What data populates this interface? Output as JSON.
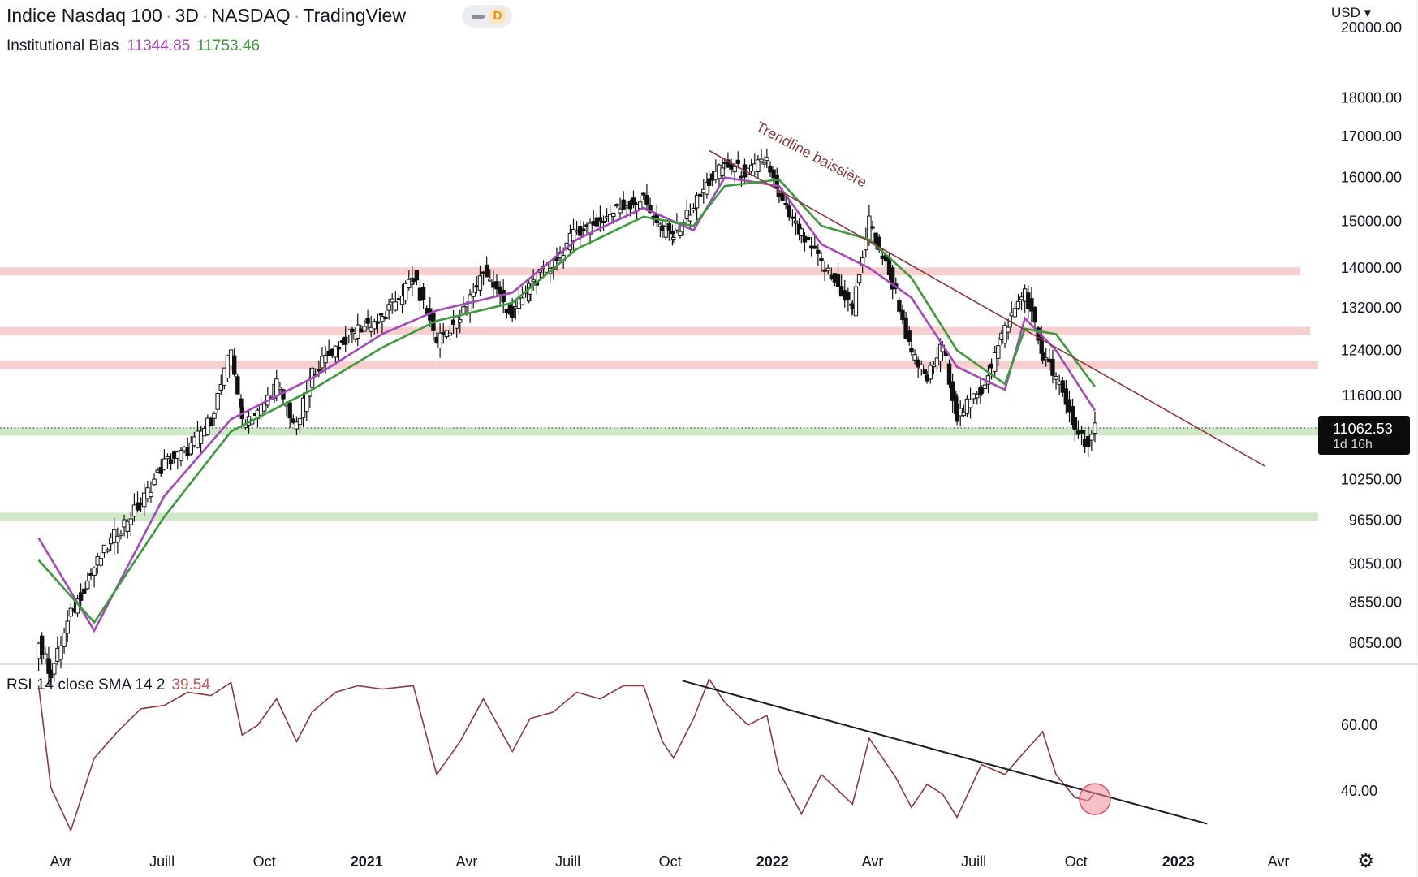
{
  "header": {
    "symbol": "Indice Nasdaq 100",
    "interval": "3D",
    "exchange": "NASDAQ",
    "source": "TradingView",
    "interval_badge": "D",
    "currency": "USD ▾"
  },
  "indicator": {
    "name": "Institutional Bias",
    "fast_value": "11344.85",
    "slow_value": "11753.46",
    "fast_color": "#a349b8",
    "slow_color": "#3d9a3d"
  },
  "rsi_legend": {
    "label": "RSI 14 close SMA 14 2",
    "value": "39.54",
    "color": "#c2575a"
  },
  "last_price": {
    "value": "11062.53",
    "countdown": "1d 16h"
  },
  "icons": {
    "settings": "gear-icon"
  },
  "colors": {
    "resistance_zone": "#f7cfcf",
    "support_zone": "#cfe9c8",
    "trendline": "#8b3a3e",
    "rsi_trendline": "#1e1e1e",
    "rsi_line": "#8b3a3e",
    "candle": "#111111",
    "highlight_circle": "#f08a99"
  },
  "chart_data": [
    {
      "type": "candlestick",
      "title": "",
      "xlabel": "",
      "ylabel": "",
      "x_ticks": [
        "Avr",
        "Juill",
        "Oct",
        "2021",
        "Avr",
        "Juill",
        "Oct",
        "2022",
        "Avr",
        "Juill",
        "Oct",
        "2023",
        "Avr"
      ],
      "x_tick_dates": [
        "2020-04",
        "2020-07",
        "2020-10",
        "2021-01",
        "2021-04",
        "2021-07",
        "2021-10",
        "2022-01",
        "2022-04",
        "2022-07",
        "2022-10",
        "2023-01",
        "2023-04"
      ],
      "y_ticks": [
        "8050.00",
        "8550.00",
        "9050.00",
        "9650.00",
        "10250.00",
        "11600.00",
        "12400.00",
        "13200.00",
        "14000.00",
        "15000.00",
        "16000.00",
        "17000.00",
        "18000.00",
        "20000.00"
      ],
      "y_scale": "log",
      "series": [
        {
          "name": "",
          "note": "3-day closes, approximate",
          "x": [
            "2020-03-12",
            "2020-03-23",
            "2020-04-10",
            "2020-05-01",
            "2020-05-22",
            "2020-06-12",
            "2020-07-03",
            "2020-07-24",
            "2020-08-14",
            "2020-09-01",
            "2020-09-11",
            "2020-09-25",
            "2020-10-12",
            "2020-10-30",
            "2020-11-13",
            "2020-12-04",
            "2020-12-24",
            "2021-01-15",
            "2021-02-12",
            "2021-03-05",
            "2021-03-26",
            "2021-04-16",
            "2021-05-12",
            "2021-05-28",
            "2021-06-18",
            "2021-07-09",
            "2021-07-30",
            "2021-08-20",
            "2021-09-07",
            "2021-09-24",
            "2021-10-04",
            "2021-10-22",
            "2021-11-05",
            "2021-11-19",
            "2021-12-10",
            "2021-12-27",
            "2022-01-07",
            "2022-01-27",
            "2022-02-14",
            "2022-03-14",
            "2022-03-29",
            "2022-04-22",
            "2022-05-06",
            "2022-05-20",
            "2022-06-03",
            "2022-06-16",
            "2022-07-08",
            "2022-07-29",
            "2022-08-16",
            "2022-09-01",
            "2022-09-13",
            "2022-09-30",
            "2022-10-12",
            "2022-10-18"
          ],
          "close": [
            8050,
            7700,
            8400,
            9000,
            9500,
            9900,
            10500,
            10700,
            11200,
            12400,
            11200,
            11300,
            11800,
            11050,
            12000,
            12450,
            12800,
            13000,
            13800,
            12600,
            13000,
            13950,
            13050,
            13650,
            14100,
            14800,
            15000,
            15350,
            15500,
            14800,
            14700,
            15350,
            15900,
            16300,
            16100,
            16450,
            15500,
            14700,
            14100,
            13200,
            15000,
            13500,
            12300,
            11900,
            12500,
            11250,
            11700,
            12800,
            13550,
            12300,
            11900,
            11050,
            10800,
            11062.53
          ]
        },
        {
          "name": "Institutional Bias",
          "note": "fast moving average (purple), approximate",
          "x": [
            "2020-03-12",
            "2020-05-01",
            "2020-07-03",
            "2020-09-01",
            "2020-11-13",
            "2021-01-15",
            "2021-03-05",
            "2021-05-12",
            "2021-07-09",
            "2021-09-07",
            "2021-10-22",
            "2021-11-19",
            "2022-01-07",
            "2022-02-14",
            "2022-03-29",
            "2022-05-06",
            "2022-06-16",
            "2022-07-29",
            "2022-08-16",
            "2022-09-13",
            "2022-10-18"
          ],
          "values": [
            9400,
            8200,
            10000,
            11200,
            11900,
            12700,
            13150,
            13500,
            14600,
            15300,
            14800,
            16000,
            15800,
            14500,
            14000,
            13400,
            12100,
            11700,
            13000,
            12400,
            11344.85
          ]
        },
        {
          "name": "Institutional Bias",
          "note": "slow moving average (green), approximate",
          "x": [
            "2020-03-12",
            "2020-05-01",
            "2020-07-03",
            "2020-09-01",
            "2020-11-13",
            "2021-01-15",
            "2021-03-05",
            "2021-05-12",
            "2021-07-09",
            "2021-09-07",
            "2021-10-22",
            "2021-11-19",
            "2022-01-07",
            "2022-02-14",
            "2022-03-29",
            "2022-05-06",
            "2022-06-16",
            "2022-07-29",
            "2022-08-16",
            "2022-09-13",
            "2022-10-18"
          ],
          "values": [
            9100,
            8300,
            9700,
            11000,
            11700,
            12450,
            12950,
            13300,
            14400,
            15100,
            14900,
            15800,
            15950,
            14900,
            14600,
            13800,
            12400,
            11800,
            12800,
            12700,
            11753.46
          ]
        }
      ],
      "horizontal_zones": [
        {
          "price": 13930,
          "color": "#f7cfcf"
        },
        {
          "price": 12760,
          "color": "#f7cfcf"
        },
        {
          "price": 12130,
          "color": "#f7cfcf"
        },
        {
          "price": 11000,
          "color": "#cfe9c8"
        },
        {
          "price": 9700,
          "color": "#cfe9c8"
        }
      ],
      "trendline": {
        "label": "Trendline baissière",
        "from": [
          "2021-11-05",
          16650
        ],
        "to": [
          "2023-03-20",
          10450
        ]
      }
    },
    {
      "type": "line",
      "title": "",
      "xlabel": "",
      "ylabel": "",
      "y_ticks": [
        "60.00",
        "40.00"
      ],
      "series": [
        {
          "name": "RSI 14 close SMA 14 2",
          "note": "values approximate",
          "x": [
            "2020-03-12",
            "2020-03-23",
            "2020-04-10",
            "2020-05-01",
            "2020-05-22",
            "2020-06-12",
            "2020-07-03",
            "2020-07-24",
            "2020-08-14",
            "2020-09-01",
            "2020-09-11",
            "2020-09-25",
            "2020-10-12",
            "2020-10-30",
            "2020-11-13",
            "2020-12-04",
            "2020-12-24",
            "2021-01-15",
            "2021-02-12",
            "2021-03-05",
            "2021-03-26",
            "2021-04-16",
            "2021-05-12",
            "2021-05-28",
            "2021-06-18",
            "2021-07-09",
            "2021-07-30",
            "2021-08-20",
            "2021-09-07",
            "2021-09-24",
            "2021-10-04",
            "2021-10-22",
            "2021-11-05",
            "2021-11-19",
            "2021-12-10",
            "2021-12-27",
            "2022-01-07",
            "2022-01-27",
            "2022-02-14",
            "2022-03-14",
            "2022-03-29",
            "2022-04-22",
            "2022-05-06",
            "2022-05-20",
            "2022-06-03",
            "2022-06-16",
            "2022-07-08",
            "2022-07-29",
            "2022-08-16",
            "2022-09-01",
            "2022-09-13",
            "2022-09-30",
            "2022-10-12",
            "2022-10-18"
          ],
          "values": [
            72,
            41,
            28,
            50,
            58,
            65,
            66,
            70,
            69,
            73,
            57,
            60,
            68,
            55,
            64,
            70,
            72,
            71,
            72,
            45,
            55,
            68,
            52,
            62,
            64,
            70,
            68,
            72,
            72,
            55,
            50,
            62,
            74,
            67,
            60,
            63,
            46,
            33,
            45,
            36,
            56,
            44,
            35,
            42,
            39,
            32,
            48,
            45,
            52,
            58,
            45,
            38,
            37,
            39.54
          ]
        }
      ],
      "trendline": {
        "from": [
          "2021-10-12",
          73.5
        ],
        "to": [
          "2023-01-27",
          30
        ]
      },
      "highlight": {
        "x": "2022-10-18",
        "value": 37.5
      }
    }
  ]
}
